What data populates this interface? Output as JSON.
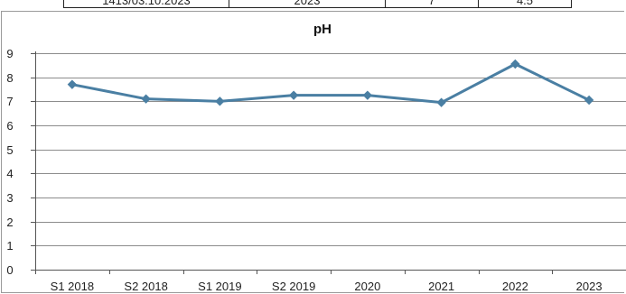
{
  "header_row": {
    "cells": [
      "1413/03.10.2023",
      "2023",
      "7",
      "4.5"
    ]
  },
  "chart_data": {
    "type": "line",
    "title": "pH",
    "xlabel": "",
    "ylabel": "",
    "categories": [
      "S1 2018",
      "S2 2018",
      "S1 2019",
      "S2 2019",
      "2020",
      "2021",
      "2022",
      "2023"
    ],
    "series": [
      {
        "values": [
          7.7,
          7.1,
          7.0,
          7.25,
          7.25,
          6.95,
          8.55,
          7.05
        ],
        "color": "#4a7fa3"
      }
    ],
    "ylim": [
      0,
      9
    ],
    "yticks": [
      "0",
      "1",
      "2",
      "3",
      "4",
      "5",
      "6",
      "7",
      "8",
      "9"
    ],
    "grid": true,
    "legend": "none",
    "marker": "diamond"
  }
}
